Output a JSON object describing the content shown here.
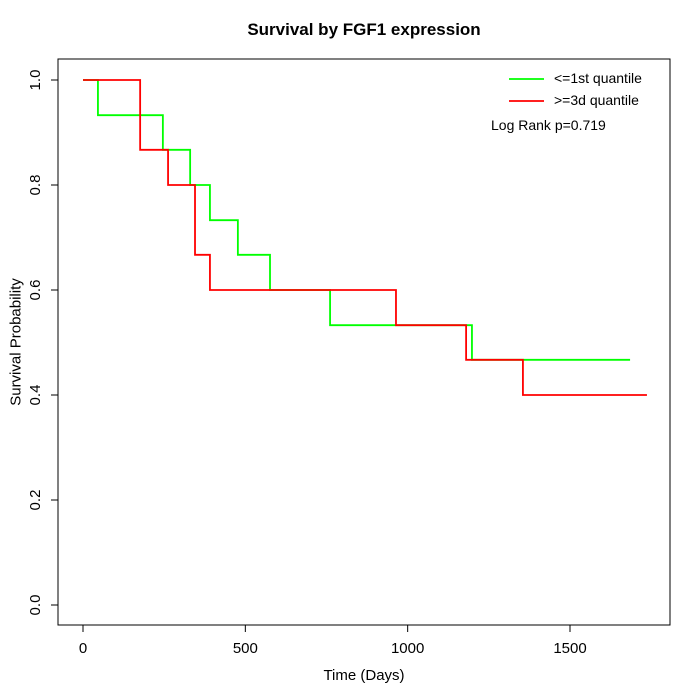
{
  "title": "Survival by FGF1 expression",
  "axes": {
    "x_label": "Time (Days)",
    "y_label": "Survival Probability",
    "x_tick_labels": [
      "0",
      "500",
      "1000",
      "1500"
    ],
    "y_tick_labels": [
      "0.0",
      "0.2",
      "0.4",
      "0.6",
      "0.8",
      "1.0"
    ]
  },
  "legend": {
    "items": [
      {
        "label": "<=1st quantile",
        "color": "#00ff00"
      },
      {
        "label": ">=3d quantile",
        "color": "#ff0000"
      }
    ],
    "annotation": "Log Rank p=0.719"
  },
  "chart_data": {
    "type": "line",
    "subtype": "kaplan-meier-step",
    "title": "Survival by FGF1 expression",
    "xlabel": "Time (Days)",
    "ylabel": "Survival Probability",
    "xlim": [
      0,
      1740
    ],
    "ylim": [
      0,
      1
    ],
    "x_ticks": [
      0,
      500,
      1000,
      1500
    ],
    "y_ticks": [
      0.0,
      0.2,
      0.4,
      0.6,
      0.8,
      1.0
    ],
    "grid": false,
    "legend_position": "top-right",
    "annotation": "Log Rank p=0.719",
    "series": [
      {
        "name": "<=1st quantile",
        "color": "#00ff00",
        "steps": [
          [
            0,
            1.0
          ],
          [
            46,
            0.933
          ],
          [
            246,
            0.867
          ],
          [
            330,
            0.8
          ],
          [
            391,
            0.733
          ],
          [
            477,
            0.667
          ],
          [
            576,
            0.6
          ],
          [
            761,
            0.533
          ],
          [
            1198,
            0.467
          ]
        ],
        "end_time": 1685
      },
      {
        "name": ">=3d quantile",
        "color": "#ff0000",
        "steps": [
          [
            0,
            1.0
          ],
          [
            176,
            0.867
          ],
          [
            262,
            0.8
          ],
          [
            345,
            0.667
          ],
          [
            391,
            0.6
          ],
          [
            964,
            0.533
          ],
          [
            1180,
            0.467
          ],
          [
            1355,
            0.4
          ]
        ],
        "end_time": 1737
      }
    ]
  },
  "colors": {
    "green_series": "#00ff00",
    "red_series": "#ff0000",
    "axis": "#000000",
    "background": "#ffffff"
  }
}
